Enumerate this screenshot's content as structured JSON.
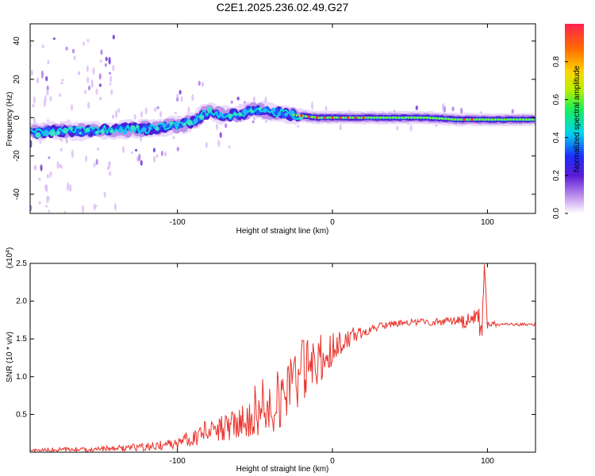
{
  "title": "C2E1.2025.236.02.49.G27",
  "colors": {
    "snr_line": "#e8312a",
    "frame": "#000000",
    "core": "#00e5d6"
  },
  "chart_data": [
    {
      "type": "heatmap",
      "title": "C2E1.2025.236.02.49.G27",
      "xlabel": "Height of straight line (km)",
      "ylabel": "Frequency (Hz)",
      "xlim": [
        -195,
        131
      ],
      "ylim": [
        -50,
        49
      ],
      "x_ticks": [
        -100,
        0,
        100
      ],
      "y_ticks": [
        -40,
        -20,
        0,
        20,
        40
      ],
      "colorbar": {
        "label": "Normalized spectral amplitude",
        "range": [
          0,
          1
        ],
        "ticks": [
          0.0,
          0.2,
          0.4,
          0.6,
          0.8
        ]
      },
      "ridge": {
        "x": [
          -195,
          -180,
          -160,
          -140,
          -120,
          -100,
          -90,
          -80,
          -70,
          -60,
          -50,
          -40,
          -30,
          -20,
          -10,
          0,
          20,
          40,
          60,
          80,
          100,
          131
        ],
        "y": [
          -8,
          -7,
          -7,
          -6,
          -6,
          -4,
          -2,
          3,
          1,
          2,
          4,
          3,
          2,
          1,
          0,
          0,
          0,
          0,
          0,
          -1,
          -1,
          -1
        ]
      }
    },
    {
      "type": "line",
      "xlabel": "Height of straight line (km)",
      "ylabel": "SNR (10 * v/v)",
      "y_multiplier": "(x10",
      "y_multiplier_exp": "4",
      "xlim": [
        -195,
        131
      ],
      "ylim": [
        0,
        2.5
      ],
      "x_ticks": [
        -100,
        0,
        100
      ],
      "y_ticks": [
        0.5,
        1.0,
        1.5,
        2.0,
        2.5
      ],
      "series": [
        {
          "name": "SNR",
          "x": [
            -195,
            -180,
            -160,
            -140,
            -120,
            -100,
            -90,
            -80,
            -70,
            -60,
            -50,
            -40,
            -35,
            -30,
            -25,
            -20,
            -15,
            -10,
            -5,
            0,
            5,
            10,
            20,
            30,
            40,
            50,
            60,
            70,
            80,
            85,
            90,
            95,
            97,
            98,
            100,
            105,
            110,
            120,
            131
          ],
          "y": [
            0.02,
            0.03,
            0.04,
            0.05,
            0.07,
            0.12,
            0.2,
            0.3,
            0.32,
            0.4,
            0.55,
            0.7,
            0.8,
            0.9,
            0.95,
            1.05,
            1.1,
            1.2,
            1.3,
            1.35,
            1.45,
            1.5,
            1.6,
            1.66,
            1.7,
            1.72,
            1.72,
            1.73,
            1.74,
            1.75,
            1.72,
            1.7,
            1.85,
            2.5,
            1.68,
            1.7,
            1.69,
            1.69,
            1.69
          ],
          "noise_amplitude": [
            0.02,
            0.03,
            0.03,
            0.04,
            0.05,
            0.08,
            0.12,
            0.18,
            0.18,
            0.22,
            0.35,
            0.45,
            0.5,
            0.5,
            0.45,
            0.45,
            0.4,
            0.35,
            0.3,
            0.22,
            0.18,
            0.15,
            0.08,
            0.05,
            0.04,
            0.04,
            0.05,
            0.05,
            0.06,
            0.12,
            0.15,
            0.25,
            0.35,
            0.1,
            0.05,
            0.04,
            0.02,
            0.02,
            0.02
          ]
        }
      ]
    }
  ]
}
